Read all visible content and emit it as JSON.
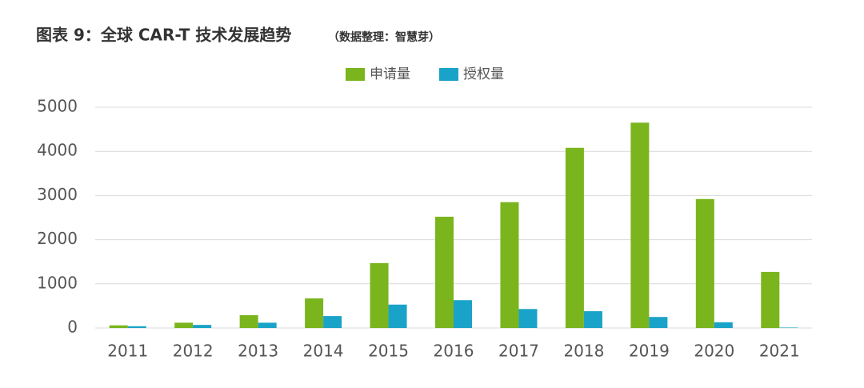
{
  "chart_data": {
    "type": "bar",
    "title": "图表 9：全球 CAR-T 技术发展趋势",
    "subtitle": "（数据整理：智慧芽）",
    "categories": [
      "2011",
      "2012",
      "2013",
      "2014",
      "2015",
      "2016",
      "2017",
      "2018",
      "2019",
      "2020",
      "2021"
    ],
    "series": [
      {
        "name": "申请量",
        "color": "#7ab51d",
        "values": [
          60,
          120,
          290,
          670,
          1470,
          2520,
          2850,
          4080,
          4650,
          2920,
          1270
        ]
      },
      {
        "name": "授权量",
        "color": "#1aa3c8",
        "values": [
          40,
          70,
          120,
          270,
          530,
          630,
          430,
          380,
          250,
          130,
          10
        ]
      }
    ],
    "ylim": [
      0,
      5000
    ],
    "yticks": [
      0,
      1000,
      2000,
      3000,
      4000,
      5000
    ],
    "grid": true,
    "legend": "top"
  }
}
